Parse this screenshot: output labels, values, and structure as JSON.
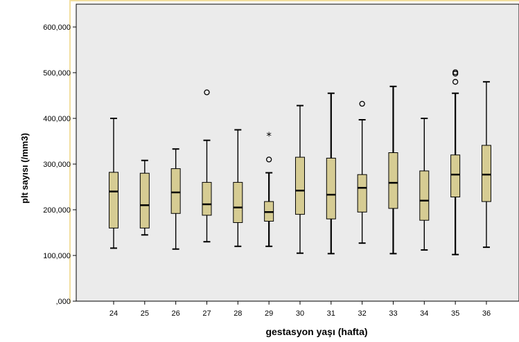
{
  "chart_data": {
    "type": "boxplot",
    "xlabel": "gestasyon yaşı (hafta)",
    "ylabel": "plt sayısı (/mm3)",
    "ylim": [
      0,
      650000
    ],
    "yticks": [
      0,
      100000,
      200000,
      300000,
      400000,
      500000,
      600000
    ],
    "ytick_labels": [
      ",000",
      "100,000",
      "200,000",
      "300,000",
      "400,000",
      "500,000",
      "600,000"
    ],
    "categories": [
      "24",
      "25",
      "26",
      "27",
      "28",
      "29",
      "30",
      "31",
      "32",
      "33",
      "34",
      "35",
      "36"
    ],
    "boxes": [
      {
        "min": 116000,
        "q1": 160000,
        "median": 240000,
        "q3": 282000,
        "max": 400000,
        "outliers": [],
        "extremes": []
      },
      {
        "min": 145000,
        "q1": 160000,
        "median": 210000,
        "q3": 280000,
        "max": 308000,
        "outliers": [],
        "extremes": []
      },
      {
        "min": 114000,
        "q1": 192000,
        "median": 238000,
        "q3": 290000,
        "max": 333000,
        "outliers": [],
        "extremes": []
      },
      {
        "min": 130000,
        "q1": 188000,
        "median": 212000,
        "q3": 260000,
        "max": 352000,
        "outliers": [
          457000
        ],
        "extremes": []
      },
      {
        "min": 120000,
        "q1": 172000,
        "median": 205000,
        "q3": 260000,
        "max": 375000,
        "outliers": [],
        "extremes": []
      },
      {
        "min": 120000,
        "q1": 175000,
        "median": 195000,
        "q3": 218000,
        "max": 281000,
        "outliers": [
          310000
        ],
        "extremes": [
          363000
        ]
      },
      {
        "min": 105000,
        "q1": 190000,
        "median": 242000,
        "q3": 315000,
        "max": 428000,
        "outliers": [],
        "extremes": []
      },
      {
        "min": 104000,
        "q1": 180000,
        "median": 233000,
        "q3": 313000,
        "max": 455000,
        "outliers": [],
        "extremes": []
      },
      {
        "min": 127000,
        "q1": 195000,
        "median": 248000,
        "q3": 277000,
        "max": 397000,
        "outliers": [
          432000
        ],
        "extremes": []
      },
      {
        "min": 104000,
        "q1": 203000,
        "median": 259000,
        "q3": 325000,
        "max": 470000,
        "outliers": [],
        "extremes": []
      },
      {
        "min": 112000,
        "q1": 177000,
        "median": 220000,
        "q3": 285000,
        "max": 400000,
        "outliers": [],
        "extremes": []
      },
      {
        "min": 102000,
        "q1": 228000,
        "median": 277000,
        "q3": 320000,
        "max": 455000,
        "outliers": [
          480000,
          498000,
          501000
        ],
        "extremes": []
      },
      {
        "min": 118000,
        "q1": 218000,
        "median": 277000,
        "q3": 341000,
        "max": 480000,
        "outliers": [],
        "extremes": []
      }
    ],
    "box_color": "#d6cc93",
    "plot_background": "#ebebeb",
    "grid": false
  }
}
